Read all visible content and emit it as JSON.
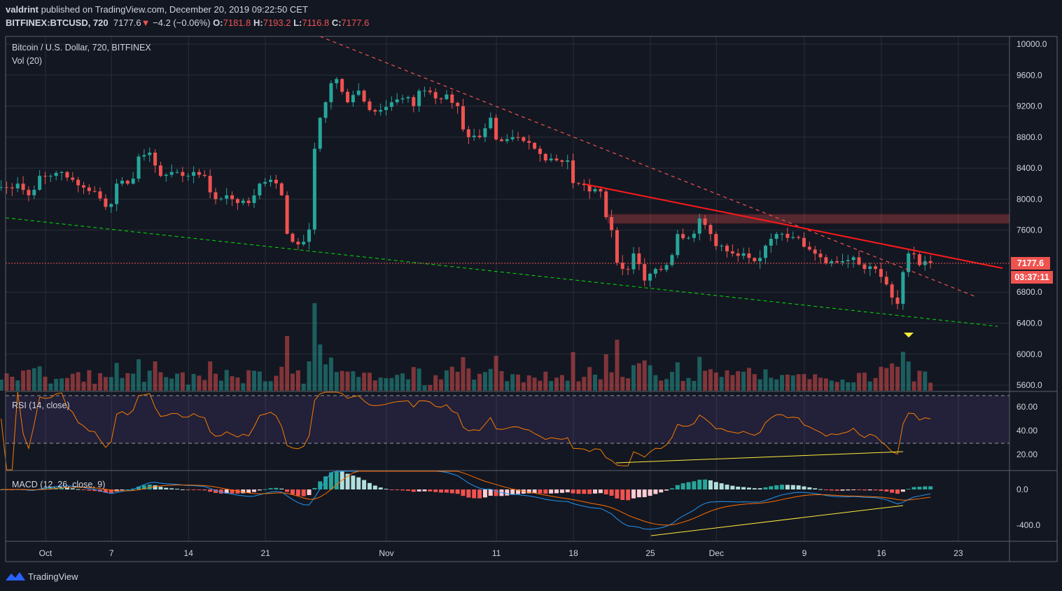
{
  "header": {
    "author": "valdrint",
    "published": "published on TradingView.com, December 20, 2019 09:22:50 CET",
    "symbol": "BITFINEX:BTCUSD, 720",
    "last": "7177.6",
    "change": "−4.2 (−0.06%)",
    "o_label": "O:",
    "o": "7181.8",
    "h_label": "H:",
    "h": "7193.2",
    "l_label": "L:",
    "l": "7116.8",
    "c_label": "C:",
    "c": "7177.6"
  },
  "legend": {
    "title": "Bitcoin / U.S. Dollar, 720, BITFINEX",
    "volume": "Vol (20)",
    "rsi": "RSI (14, close)",
    "macd": "MACD (12, 26, close, 9)"
  },
  "price_label": "7177.6",
  "countdown": "03:37:11",
  "footer": {
    "brand": "TradingView"
  },
  "colors": {
    "up": "#26a69a",
    "down": "#ef5350",
    "background": "#131722",
    "rsi": "#f57c00",
    "macd": "#2196f3",
    "signal": "#ff6d00",
    "support": "#00e600",
    "divergence": "#ffeb3b"
  },
  "chart_data": {
    "type": "candlestick",
    "interval": "12h",
    "start_date": "2019-09-27",
    "daily_closes": [
      8150,
      8200,
      8050,
      8300,
      8300,
      8350,
      8250,
      8150,
      8100,
      7900,
      8200,
      8200,
      8550,
      8600,
      8300,
      8350,
      8300,
      8350,
      8300,
      8000,
      8050,
      7950,
      7950,
      8200,
      8250,
      8050,
      7450,
      7450,
      8650,
      9250,
      9550,
      9250,
      9400,
      9150,
      9150,
      9250,
      9300,
      9200,
      9400,
      9300,
      9350,
      9200,
      8800,
      8800,
      9050,
      8750,
      8800,
      8750,
      8650,
      8500,
      8500,
      8500,
      8200,
      8100,
      8100,
      7600,
      7100,
      7300,
      6950,
      7100,
      7150,
      7550,
      7500,
      7750,
      7550,
      7400,
      7300,
      7300,
      7200,
      7400,
      7550,
      7500,
      7500,
      7350,
      7250,
      7200,
      7200,
      7250,
      7100,
      7100,
      6900,
      6650,
      7300,
      7150,
      7177.6
    ],
    "y_ticks": [
      "10000.0",
      "9600.0",
      "9200.0",
      "8800.0",
      "8400.0",
      "8000.0",
      "7600.0",
      "6800.0",
      "6400.0",
      "6000.0",
      "5600.0"
    ],
    "x_ticks": [
      "Oct",
      "7",
      "14",
      "21",
      "Nov",
      "11",
      "18",
      "25",
      "Dec",
      "9",
      "16",
      "23"
    ],
    "rsi_ticks": [
      "60.00",
      "40.00",
      "20.00"
    ],
    "macd_ticks": [
      "0.0",
      "-400.0"
    ],
    "ylim": [
      5500,
      10100
    ]
  }
}
